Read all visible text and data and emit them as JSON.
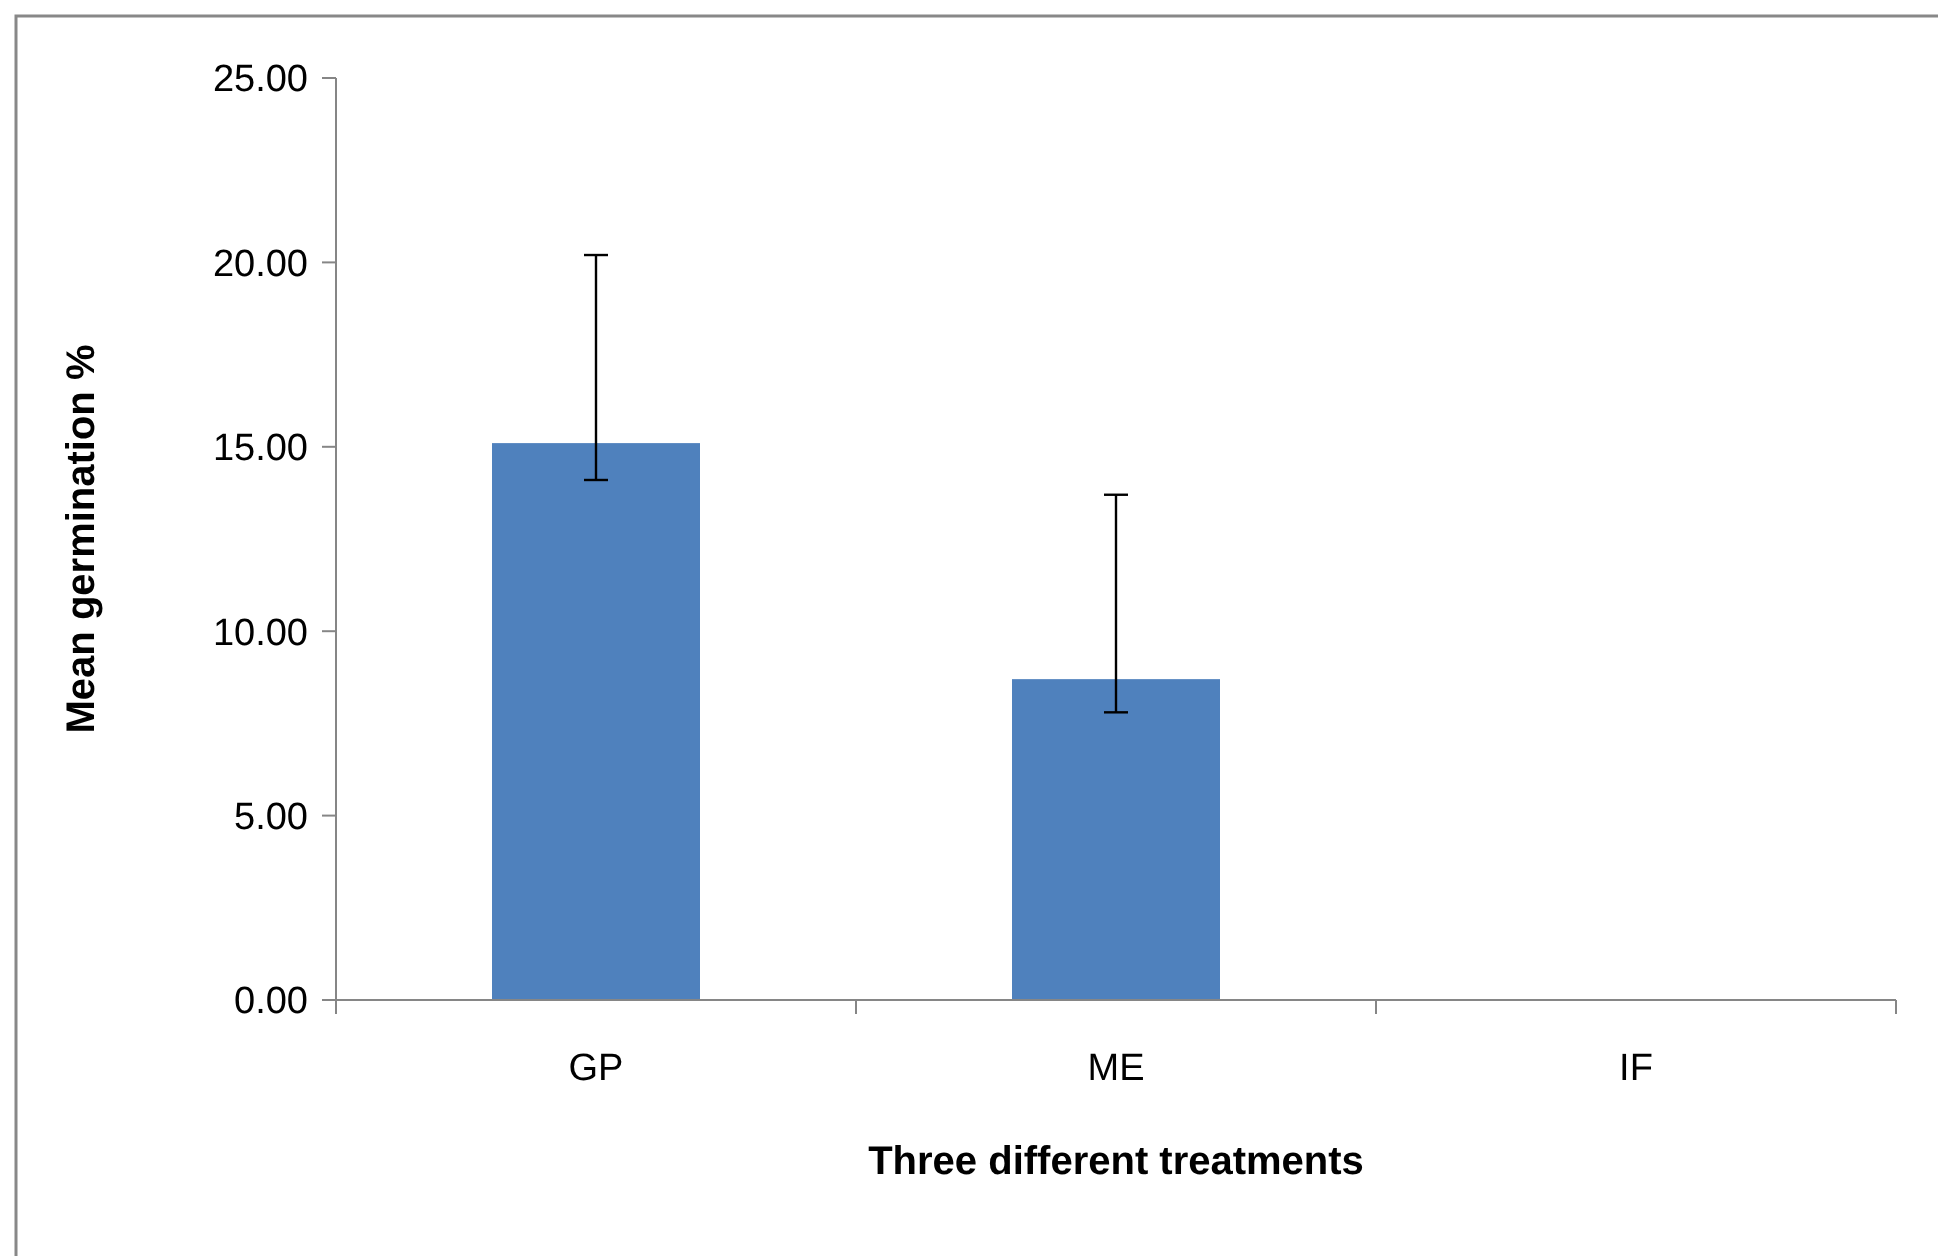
{
  "chart_data": {
    "type": "bar",
    "xlabel": "Three different treatments",
    "ylabel": "Mean germination %",
    "categories": [
      "GP",
      "ME",
      "IF"
    ],
    "values": [
      15.1,
      8.7,
      0
    ],
    "errors": [
      [
        14.1,
        20.2
      ],
      [
        7.8,
        13.7
      ],
      null
    ],
    "color": "#4f81bd",
    "ylim": [
      0,
      25
    ],
    "yticks": [
      {
        "value": 0,
        "label": "0.00"
      },
      {
        "value": 5,
        "label": "5.00"
      },
      {
        "value": 10,
        "label": "10.00"
      },
      {
        "value": 15,
        "label": "15.00"
      },
      {
        "value": 20,
        "label": "20.00"
      },
      {
        "value": 25,
        "label": "25.00"
      }
    ],
    "grid": false
  }
}
